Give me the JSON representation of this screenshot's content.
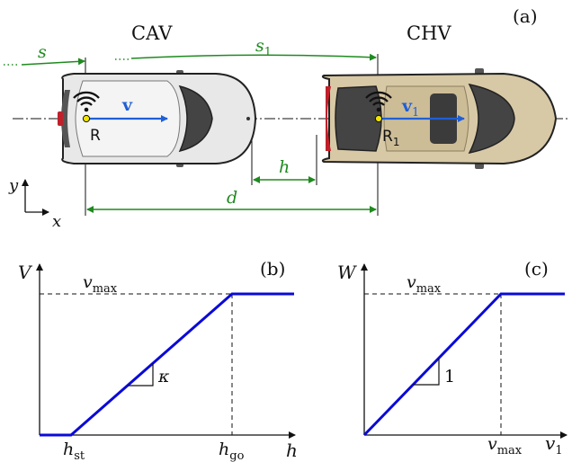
{
  "colors": {
    "green": "#1f8a1f",
    "blue": "#1f5fd6",
    "curve": "#0a0ad8",
    "black": "#111111",
    "cav_body": "#e8e8e8",
    "chv_body": "#d8c9a6",
    "window": "#444444",
    "red_light": "#c0202a",
    "dot": "#f2e400"
  },
  "panel_a": {
    "tag": "(a)",
    "cav_label": "CAV",
    "chv_label": "CHV",
    "s_label": "s",
    "s1_label": "s",
    "s1_sub": "1",
    "v_label": "v",
    "v1_label": "v",
    "v1_sub": "1",
    "r_label": "R",
    "r1_label": "R",
    "r1_sub": "1",
    "h_label": "h",
    "d_label": "d",
    "y_axis": "y",
    "x_axis": "x",
    "wifi_icon": "wifi-icon"
  },
  "panel_b": {
    "tag": "(b)",
    "ylabel": "V",
    "vmax_label": "v",
    "vmax_sub": "max",
    "slope_label": "κ",
    "hst_label": "h",
    "hst_sub": "st",
    "hgo_label": "h",
    "hgo_sub": "go",
    "xlabel": "h"
  },
  "panel_c": {
    "tag": "(c)",
    "ylabel": "W",
    "vmax_label": "v",
    "vmax_sub": "max",
    "slope_label": "1",
    "xtick_label": "v",
    "xtick_sub": "max",
    "xlabel": "v",
    "xlabel_sub": "1"
  }
}
